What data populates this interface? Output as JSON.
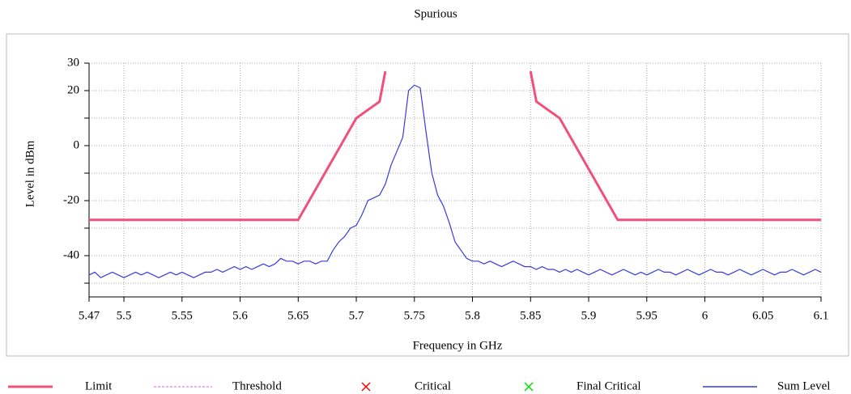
{
  "chart_data": {
    "type": "line",
    "title": "Spurious",
    "xlabel": "Frequency in GHz",
    "ylabel": "Level in dBm",
    "xlim": [
      5.47,
      6.1
    ],
    "ylim": [
      -55,
      30
    ],
    "xticks": [
      5.47,
      5.5,
      5.55,
      5.6,
      5.65,
      5.7,
      5.75,
      5.8,
      5.85,
      5.9,
      5.95,
      6,
      6.05,
      6.1
    ],
    "yticks": [
      30,
      20,
      0,
      -20,
      -40
    ],
    "yminorticks": [
      10,
      -10,
      -30,
      -50
    ],
    "grid": true,
    "series": [
      {
        "name": "Limit",
        "color": "#f0507a",
        "style": "solid",
        "x": [
          5.47,
          5.65,
          5.7,
          5.72,
          5.725,
          null,
          5.85,
          5.855,
          5.875,
          5.925,
          6.1
        ],
        "values": [
          -27,
          -27,
          10,
          16,
          27,
          null,
          27,
          16,
          10,
          -27,
          -27
        ]
      },
      {
        "name": "Threshold",
        "color": "#e060e0",
        "style": "dash",
        "x": [],
        "values": []
      },
      {
        "name": "Critical",
        "color": "#ff0000",
        "style": "cross",
        "x": [],
        "values": []
      },
      {
        "name": "Final Critical",
        "color": "#00e000",
        "style": "cross",
        "x": [],
        "values": []
      },
      {
        "name": "Sum Level",
        "color": "#3a3ae0",
        "style": "solid",
        "x": [
          5.47,
          5.475,
          5.48,
          5.485,
          5.49,
          5.495,
          5.5,
          5.505,
          5.51,
          5.515,
          5.52,
          5.525,
          5.53,
          5.535,
          5.54,
          5.545,
          5.55,
          5.555,
          5.56,
          5.565,
          5.57,
          5.575,
          5.58,
          5.585,
          5.59,
          5.595,
          5.6,
          5.605,
          5.61,
          5.615,
          5.62,
          5.625,
          5.63,
          5.635,
          5.64,
          5.645,
          5.65,
          5.655,
          5.66,
          5.665,
          5.67,
          5.675,
          5.68,
          5.685,
          5.69,
          5.695,
          5.7,
          5.705,
          5.71,
          5.715,
          5.72,
          5.725,
          5.73,
          5.735,
          5.74,
          5.745,
          5.75,
          5.755,
          5.76,
          5.765,
          5.77,
          5.775,
          5.78,
          5.785,
          5.79,
          5.795,
          5.8,
          5.805,
          5.81,
          5.815,
          5.82,
          5.825,
          5.83,
          5.835,
          5.84,
          5.845,
          5.85,
          5.855,
          5.86,
          5.865,
          5.87,
          5.875,
          5.88,
          5.885,
          5.89,
          5.895,
          5.9,
          5.905,
          5.91,
          5.915,
          5.92,
          5.925,
          5.93,
          5.935,
          5.94,
          5.945,
          5.95,
          5.955,
          5.96,
          5.965,
          5.97,
          5.975,
          5.98,
          5.985,
          5.99,
          5.995,
          6,
          6.005,
          6.01,
          6.015,
          6.02,
          6.025,
          6.03,
          6.035,
          6.04,
          6.045,
          6.05,
          6.055,
          6.06,
          6.065,
          6.07,
          6.075,
          6.08,
          6.085,
          6.09,
          6.095,
          6.1
        ],
        "values": [
          -47,
          -46,
          -48,
          -47,
          -46,
          -47,
          -48,
          -47,
          -46,
          -47,
          -46,
          -47,
          -48,
          -47,
          -46,
          -47,
          -46,
          -47,
          -48,
          -47,
          -46,
          -46,
          -45,
          -46,
          -45,
          -44,
          -45,
          -44,
          -45,
          -44,
          -43,
          -44,
          -43,
          -41,
          -42,
          -42,
          -43,
          -42,
          -42,
          -43,
          -42,
          -42,
          -38,
          -35,
          -33,
          -30,
          -29,
          -25,
          -20,
          -19,
          -18,
          -14,
          -7,
          -2,
          3,
          20,
          22,
          21,
          5,
          -10,
          -18,
          -22,
          -28,
          -35,
          -38,
          -41,
          -42,
          -42,
          -43,
          -42,
          -43,
          -44,
          -43,
          -42,
          -43,
          -44,
          -44,
          -45,
          -44,
          -45,
          -45,
          -46,
          -45,
          -46,
          -45,
          -46,
          -47,
          -46,
          -45,
          -46,
          -47,
          -46,
          -45,
          -46,
          -47,
          -46,
          -47,
          -46,
          -45,
          -46,
          -46,
          -47,
          -46,
          -45,
          -46,
          -47,
          -46,
          -45,
          -46,
          -46,
          -47,
          -46,
          -45,
          -46,
          -47,
          -46,
          -45,
          -46,
          -47,
          -46,
          -46,
          -45,
          -46,
          -47,
          -46,
          -45,
          -46
        ]
      }
    ]
  }
}
